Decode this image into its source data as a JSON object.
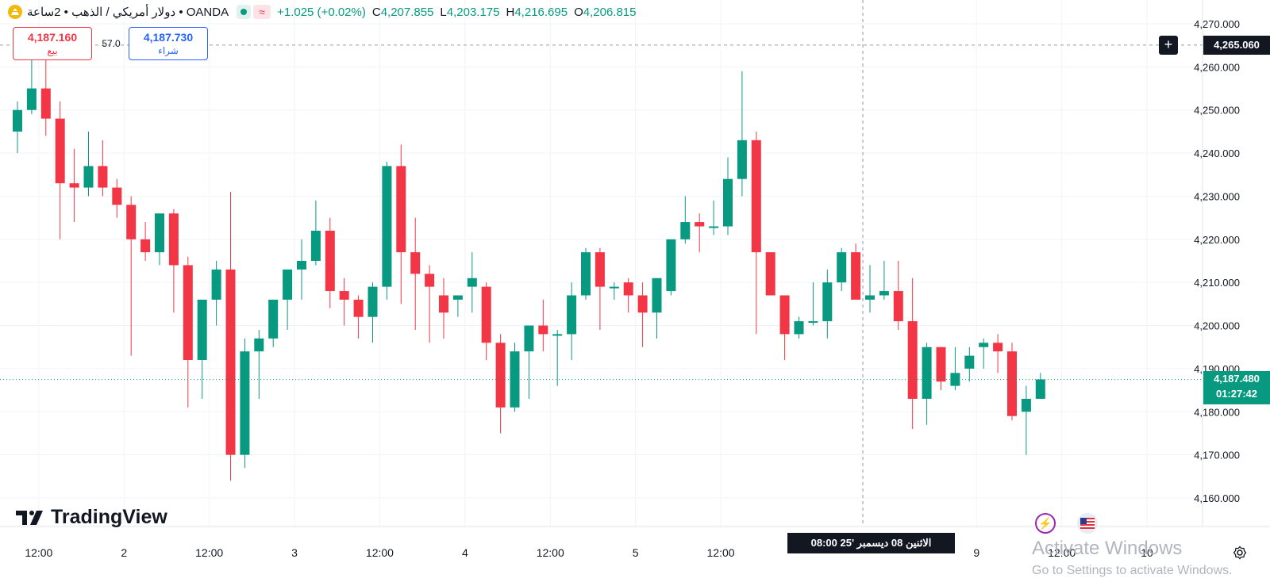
{
  "header": {
    "title": "دولار أمريكي / الذهب • 2ساعة • OANDA",
    "change": "+1.025 (+0.02%)",
    "ohlc": [
      {
        "label": "O",
        "value": "4,206.815"
      },
      {
        "label": "H",
        "value": "4,216.695"
      },
      {
        "label": "L",
        "value": "4,203.175"
      },
      {
        "label": "C",
        "value": "4,207.855"
      }
    ]
  },
  "trade": {
    "sell_price": "4,187.160",
    "sell_label": "بيع",
    "spread": "57.0",
    "buy_price": "4,187.730",
    "buy_label": "شراء"
  },
  "crosshair": {
    "price_label": "4,265.060",
    "price": 4265.06,
    "date_label": "الاثنين 08 ديسمبر '25   08:00"
  },
  "last_price": {
    "price_label": "4,187.480",
    "countdown": "01:27:42",
    "price": 4187.48
  },
  "logo_text": "TradingView",
  "watermark": {
    "line1": "Activate Windows",
    "line2": "Go to Settings to activate Windows."
  },
  "colors": {
    "up": "#089981",
    "down": "#f23645",
    "grid": "#f0f3fa",
    "text": "#131722"
  },
  "chart_data": {
    "type": "candlestick",
    "title": "دولار أمريكي / الذهب • 2ساعة • OANDA",
    "ylim": [
      4155,
      4275
    ],
    "y_ticks": [
      4160,
      4170,
      4180,
      4190,
      4200,
      4210,
      4220,
      4230,
      4240,
      4250,
      4260,
      4270
    ],
    "y_tick_labels": [
      "4,160.000",
      "4,170.000",
      "4,180.000",
      "4,190.000",
      "4,200.000",
      "4,210.000",
      "4,220.000",
      "4,230.000",
      "4,240.000",
      "4,250.000",
      "4,260.000",
      "4,270.000"
    ],
    "x_ticks": [
      {
        "index": 1.5,
        "label": "12:00"
      },
      {
        "index": 7.5,
        "label": "2"
      },
      {
        "index": 13.5,
        "label": "12:00"
      },
      {
        "index": 19.5,
        "label": "3"
      },
      {
        "index": 25.5,
        "label": "12:00"
      },
      {
        "index": 31.5,
        "label": "4"
      },
      {
        "index": 37.5,
        "label": "12:00"
      },
      {
        "index": 43.5,
        "label": "5"
      },
      {
        "index": 49.5,
        "label": "12:00"
      },
      {
        "index": 67.5,
        "label": "9"
      },
      {
        "index": 73.5,
        "label": "12:00"
      },
      {
        "index": 79.5,
        "label": "10"
      }
    ],
    "crosshair_index": 59.5,
    "candles": [
      {
        "o": 4245,
        "h": 4252,
        "l": 4240,
        "c": 4250
      },
      {
        "o": 4250,
        "h": 4262,
        "l": 4249,
        "c": 4255
      },
      {
        "o": 4255,
        "h": 4262,
        "l": 4244,
        "c": 4248
      },
      {
        "o": 4248,
        "h": 4252,
        "l": 4220,
        "c": 4233
      },
      {
        "o": 4233,
        "h": 4241,
        "l": 4224,
        "c": 4232
      },
      {
        "o": 4232,
        "h": 4245,
        "l": 4230,
        "c": 4237
      },
      {
        "o": 4237,
        "h": 4243,
        "l": 4230,
        "c": 4232
      },
      {
        "o": 4232,
        "h": 4234,
        "l": 4225,
        "c": 4228
      },
      {
        "o": 4228,
        "h": 4230,
        "l": 4193,
        "c": 4220
      },
      {
        "o": 4220,
        "h": 4224,
        "l": 4215,
        "c": 4217
      },
      {
        "o": 4217,
        "h": 4226,
        "l": 4214,
        "c": 4226
      },
      {
        "o": 4226,
        "h": 4227,
        "l": 4203,
        "c": 4214
      },
      {
        "o": 4214,
        "h": 4216,
        "l": 4181,
        "c": 4192
      },
      {
        "o": 4192,
        "h": 4206,
        "l": 4183,
        "c": 4206
      },
      {
        "o": 4206,
        "h": 4215,
        "l": 4200,
        "c": 4213
      },
      {
        "o": 4213,
        "h": 4231,
        "l": 4164,
        "c": 4170
      },
      {
        "o": 4170,
        "h": 4197,
        "l": 4167,
        "c": 4194
      },
      {
        "o": 4194,
        "h": 4199,
        "l": 4183,
        "c": 4197
      },
      {
        "o": 4197,
        "h": 4205,
        "l": 4195,
        "c": 4206
      },
      {
        "o": 4206,
        "h": 4213,
        "l": 4199,
        "c": 4213
      },
      {
        "o": 4213,
        "h": 4220,
        "l": 4206,
        "c": 4215
      },
      {
        "o": 4215,
        "h": 4229,
        "l": 4214,
        "c": 4222
      },
      {
        "o": 4222,
        "h": 4225,
        "l": 4204,
        "c": 4208
      },
      {
        "o": 4208,
        "h": 4211,
        "l": 4200,
        "c": 4206
      },
      {
        "o": 4206,
        "h": 4207,
        "l": 4197,
        "c": 4202
      },
      {
        "o": 4202,
        "h": 4210,
        "l": 4196,
        "c": 4209
      },
      {
        "o": 4209,
        "h": 4238,
        "l": 4206,
        "c": 4237
      },
      {
        "o": 4237,
        "h": 4242,
        "l": 4205,
        "c": 4217
      },
      {
        "o": 4217,
        "h": 4225,
        "l": 4199,
        "c": 4212
      },
      {
        "o": 4212,
        "h": 4214,
        "l": 4196,
        "c": 4209
      },
      {
        "o": 4207,
        "h": 4211,
        "l": 4197,
        "c": 4203
      },
      {
        "o": 4206,
        "h": 4207,
        "l": 4202,
        "c": 4207
      },
      {
        "o": 4209,
        "h": 4217,
        "l": 4203,
        "c": 4211
      },
      {
        "o": 4209,
        "h": 4210,
        "l": 4192,
        "c": 4196
      },
      {
        "o": 4196,
        "h": 4198,
        "l": 4175,
        "c": 4181
      },
      {
        "o": 4181,
        "h": 4196,
        "l": 4180,
        "c": 4194
      },
      {
        "o": 4194,
        "h": 4200,
        "l": 4183,
        "c": 4200
      },
      {
        "o": 4200,
        "h": 4206,
        "l": 4194,
        "c": 4198
      },
      {
        "o": 4198,
        "h": 4199,
        "l": 4186,
        "c": 4198
      },
      {
        "o": 4198,
        "h": 4210,
        "l": 4192,
        "c": 4207
      },
      {
        "o": 4207,
        "h": 4218,
        "l": 4206,
        "c": 4217
      },
      {
        "o": 4217,
        "h": 4218,
        "l": 4199,
        "c": 4209
      },
      {
        "o": 4209,
        "h": 4210,
        "l": 4206,
        "c": 4209
      },
      {
        "o": 4210,
        "h": 4211,
        "l": 4203,
        "c": 4207
      },
      {
        "o": 4207,
        "h": 4210,
        "l": 4195,
        "c": 4203
      },
      {
        "o": 4203,
        "h": 4211,
        "l": 4197,
        "c": 4211
      },
      {
        "o": 4208,
        "h": 4220,
        "l": 4207,
        "c": 4220
      },
      {
        "o": 4220,
        "h": 4230,
        "l": 4219,
        "c": 4224
      },
      {
        "o": 4224,
        "h": 4226,
        "l": 4217,
        "c": 4223
      },
      {
        "o": 4223,
        "h": 4229,
        "l": 4221,
        "c": 4223
      },
      {
        "o": 4223,
        "h": 4239,
        "l": 4221,
        "c": 4234
      },
      {
        "o": 4234,
        "h": 4259,
        "l": 4230,
        "c": 4243
      },
      {
        "o": 4243,
        "h": 4245,
        "l": 4198,
        "c": 4217
      },
      {
        "o": 4217,
        "h": 4217,
        "l": 4207,
        "c": 4207
      },
      {
        "o": 4207,
        "h": 4207,
        "l": 4192,
        "c": 4198
      },
      {
        "o": 4198,
        "h": 4202,
        "l": 4197,
        "c": 4201
      },
      {
        "o": 4201,
        "h": 4210,
        "l": 4200,
        "c": 4201
      },
      {
        "o": 4201,
        "h": 4213,
        "l": 4197,
        "c": 4210
      },
      {
        "o": 4210,
        "h": 4218,
        "l": 4208,
        "c": 4217
      },
      {
        "o": 4217,
        "h": 4219,
        "l": 4206,
        "c": 4206
      },
      {
        "o": 4206,
        "h": 4214,
        "l": 4203,
        "c": 4207
      },
      {
        "o": 4207,
        "h": 4215,
        "l": 4206,
        "c": 4208
      },
      {
        "o": 4208,
        "h": 4215,
        "l": 4199,
        "c": 4201
      },
      {
        "o": 4201,
        "h": 4211,
        "l": 4176,
        "c": 4183
      },
      {
        "o": 4183,
        "h": 4196,
        "l": 4177,
        "c": 4195
      },
      {
        "o": 4195,
        "h": 4195,
        "l": 4185,
        "c": 4187
      },
      {
        "o": 4186,
        "h": 4195,
        "l": 4185,
        "c": 4189
      },
      {
        "o": 4190,
        "h": 4195,
        "l": 4187,
        "c": 4193
      },
      {
        "o": 4195,
        "h": 4197,
        "l": 4190,
        "c": 4196
      },
      {
        "o": 4196,
        "h": 4198,
        "l": 4189,
        "c": 4194
      },
      {
        "o": 4194,
        "h": 4196,
        "l": 4178,
        "c": 4179
      },
      {
        "o": 4180,
        "h": 4186,
        "l": 4170,
        "c": 4183
      },
      {
        "o": 4183,
        "h": 4189,
        "l": 4183,
        "c": 4187.5
      }
    ]
  }
}
